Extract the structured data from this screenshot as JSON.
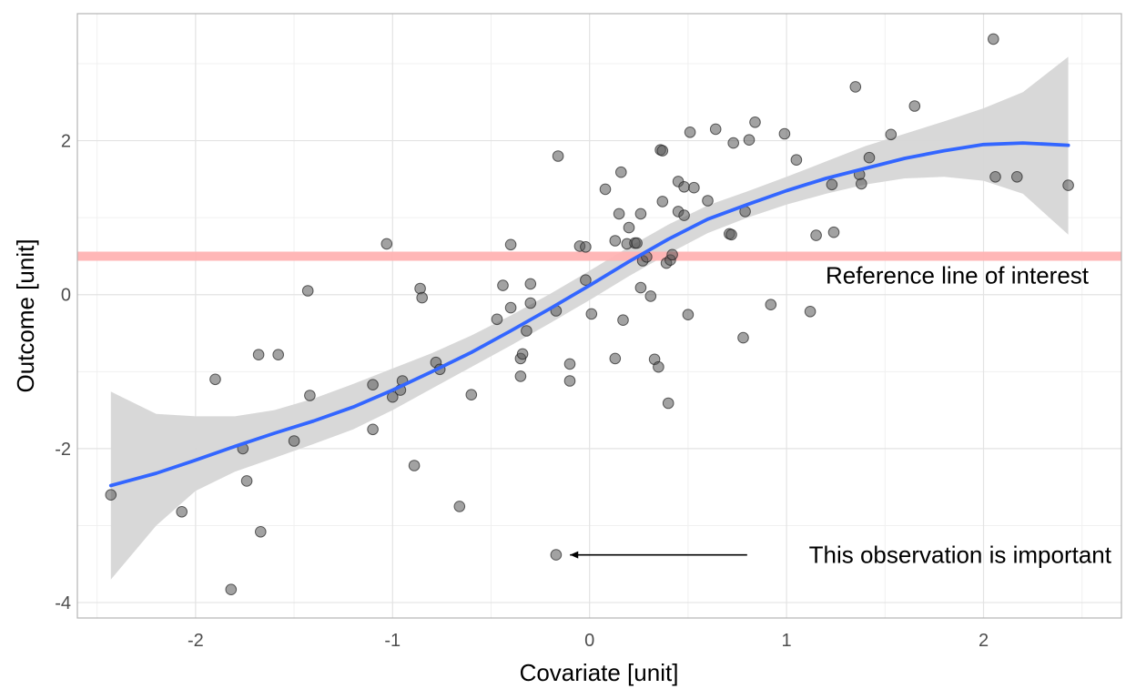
{
  "chart_data": {
    "type": "scatter",
    "xlabel": "Covariate [unit]",
    "ylabel": "Outcome [unit]",
    "xlim": [
      -2.6,
      2.7
    ],
    "ylim": [
      -4.2,
      3.65
    ],
    "x_ticks": [
      -2,
      -1,
      0,
      1,
      2
    ],
    "y_ticks": [
      -4,
      -2,
      0,
      2
    ],
    "x_tick_labels": [
      "-2",
      "-1",
      "0",
      "1",
      "2"
    ],
    "y_tick_labels": [
      "-4",
      "-2",
      "0",
      "2"
    ],
    "grid": true,
    "reference_line": {
      "y": 0.5,
      "color": "#ffb3b3",
      "label": "Reference line of interest"
    },
    "annotation": {
      "text": "This observation is important",
      "point": [
        -0.15,
        -3.38
      ],
      "arrow_from": [
        0.8,
        -3.38
      ]
    },
    "colors": {
      "points": "#555555",
      "smooth": "#3366ff",
      "ribbon": "#d6d6d6",
      "panel_border": "#b3b3b3",
      "grid": "#e3e3e3"
    },
    "points": [
      [
        -2.43,
        -2.6
      ],
      [
        -2.07,
        -2.82
      ],
      [
        -1.9,
        -1.1
      ],
      [
        -1.82,
        -3.83
      ],
      [
        -1.76,
        -2.0
      ],
      [
        -1.74,
        -2.42
      ],
      [
        -1.68,
        -0.78
      ],
      [
        -1.67,
        -3.08
      ],
      [
        -1.58,
        -0.78
      ],
      [
        -1.5,
        -1.9
      ],
      [
        -1.43,
        0.05
      ],
      [
        -1.42,
        -1.31
      ],
      [
        -1.1,
        -1.75
      ],
      [
        -1.1,
        -1.17
      ],
      [
        -1.03,
        0.66
      ],
      [
        -1.0,
        -1.33
      ],
      [
        -0.96,
        -1.24
      ],
      [
        -0.95,
        -1.12
      ],
      [
        -0.89,
        -2.22
      ],
      [
        -0.86,
        0.08
      ],
      [
        -0.85,
        -0.04
      ],
      [
        -0.78,
        -0.88
      ],
      [
        -0.76,
        -0.97
      ],
      [
        -0.66,
        -2.75
      ],
      [
        -0.6,
        -1.3
      ],
      [
        -0.47,
        -0.32
      ],
      [
        -0.44,
        0.12
      ],
      [
        -0.4,
        0.65
      ],
      [
        -0.4,
        -0.17
      ],
      [
        -0.35,
        -0.83
      ],
      [
        -0.35,
        -1.06
      ],
      [
        -0.34,
        -0.77
      ],
      [
        -0.32,
        -0.47
      ],
      [
        -0.3,
        0.14
      ],
      [
        -0.3,
        -0.11
      ],
      [
        -0.17,
        -3.38
      ],
      [
        -0.17,
        -0.21
      ],
      [
        -0.16,
        1.8
      ],
      [
        -0.1,
        -0.9
      ],
      [
        -0.1,
        -1.12
      ],
      [
        -0.05,
        0.63
      ],
      [
        -0.02,
        0.62
      ],
      [
        -0.02,
        0.19
      ],
      [
        0.01,
        -0.25
      ],
      [
        0.08,
        1.37
      ],
      [
        0.13,
        0.7
      ],
      [
        0.13,
        -0.83
      ],
      [
        0.15,
        1.05
      ],
      [
        0.16,
        1.59
      ],
      [
        0.17,
        -0.33
      ],
      [
        0.19,
        0.66
      ],
      [
        0.2,
        0.87
      ],
      [
        0.23,
        0.67
      ],
      [
        0.24,
        0.67
      ],
      [
        0.26,
        1.05
      ],
      [
        0.26,
        0.09
      ],
      [
        0.27,
        0.44
      ],
      [
        0.29,
        0.49
      ],
      [
        0.31,
        -0.02
      ],
      [
        0.33,
        -0.84
      ],
      [
        0.35,
        -0.94
      ],
      [
        0.36,
        1.88
      ],
      [
        0.37,
        1.87
      ],
      [
        0.37,
        1.21
      ],
      [
        0.39,
        0.41
      ],
      [
        0.4,
        -1.41
      ],
      [
        0.41,
        0.45
      ],
      [
        0.42,
        0.52
      ],
      [
        0.45,
        1.08
      ],
      [
        0.45,
        1.47
      ],
      [
        0.48,
        1.03
      ],
      [
        0.48,
        1.4
      ],
      [
        0.5,
        -0.26
      ],
      [
        0.51,
        2.11
      ],
      [
        0.53,
        1.39
      ],
      [
        0.6,
        1.22
      ],
      [
        0.64,
        2.15
      ],
      [
        0.71,
        0.79
      ],
      [
        0.72,
        0.78
      ],
      [
        0.73,
        1.97
      ],
      [
        0.78,
        -0.56
      ],
      [
        0.79,
        1.08
      ],
      [
        0.81,
        2.01
      ],
      [
        0.84,
        2.24
      ],
      [
        0.92,
        -0.13
      ],
      [
        0.99,
        2.09
      ],
      [
        1.05,
        1.75
      ],
      [
        1.12,
        -0.22
      ],
      [
        1.15,
        0.77
      ],
      [
        1.23,
        1.43
      ],
      [
        1.24,
        0.81
      ],
      [
        1.35,
        2.7
      ],
      [
        1.37,
        1.56
      ],
      [
        1.38,
        1.44
      ],
      [
        1.42,
        1.78
      ],
      [
        1.53,
        2.08
      ],
      [
        1.65,
        2.45
      ],
      [
        2.05,
        3.32
      ],
      [
        2.06,
        1.53
      ],
      [
        2.17,
        1.53
      ],
      [
        2.43,
        1.42
      ]
    ],
    "smooth": {
      "x": [
        -2.43,
        -2.2,
        -2.0,
        -1.8,
        -1.6,
        -1.4,
        -1.2,
        -1.0,
        -0.8,
        -0.6,
        -0.4,
        -0.2,
        0.0,
        0.2,
        0.4,
        0.6,
        0.8,
        1.0,
        1.2,
        1.4,
        1.6,
        1.8,
        2.0,
        2.2,
        2.43
      ],
      "y": [
        -2.48,
        -2.32,
        -2.15,
        -1.97,
        -1.8,
        -1.64,
        -1.46,
        -1.24,
        -1.0,
        -0.75,
        -0.47,
        -0.18,
        0.12,
        0.43,
        0.72,
        0.98,
        1.17,
        1.35,
        1.51,
        1.64,
        1.77,
        1.87,
        1.95,
        1.97,
        1.94
      ],
      "lower": [
        -3.7,
        -3.0,
        -2.55,
        -2.3,
        -2.12,
        -1.94,
        -1.75,
        -1.5,
        -1.22,
        -0.94,
        -0.66,
        -0.37,
        -0.07,
        0.24,
        0.53,
        0.8,
        1.0,
        1.17,
        1.31,
        1.43,
        1.51,
        1.53,
        1.48,
        1.31,
        0.78
      ],
      "upper": [
        -1.26,
        -1.55,
        -1.58,
        -1.58,
        -1.5,
        -1.35,
        -1.16,
        -0.96,
        -0.76,
        -0.53,
        -0.27,
        0.01,
        0.31,
        0.62,
        0.91,
        1.16,
        1.34,
        1.53,
        1.73,
        1.93,
        2.09,
        2.25,
        2.42,
        2.63,
        3.09
      ]
    }
  }
}
